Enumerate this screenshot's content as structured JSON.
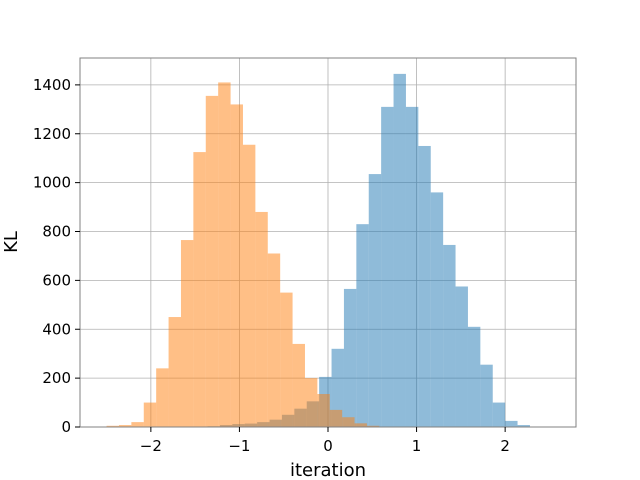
{
  "chart_data": {
    "type": "histogram",
    "xlabel": "iteration",
    "ylabel": "KL",
    "xlim": [
      -2.8,
      2.8
    ],
    "ylim": [
      0,
      1510
    ],
    "grid": true,
    "x_ticks": [
      {
        "value": -2,
        "label": "−2"
      },
      {
        "value": -1,
        "label": "−1"
      },
      {
        "value": 0,
        "label": "0"
      },
      {
        "value": 1,
        "label": "1"
      },
      {
        "value": 2,
        "label": "2"
      }
    ],
    "y_ticks": [
      0,
      200,
      400,
      600,
      800,
      1000,
      1200,
      1400
    ],
    "series": [
      {
        "color": "#1f77b4",
        "opacity": 0.5,
        "bin_start": -2.48,
        "bin_width": 0.14,
        "counts": [
          0,
          0,
          0,
          0,
          0,
          0,
          0,
          0,
          3,
          8,
          12,
          14,
          20,
          30,
          50,
          75,
          105,
          205,
          320,
          565,
          830,
          1035,
          1310,
          1445,
          1310,
          1150,
          960,
          745,
          575,
          410,
          255,
          100,
          25,
          8,
          0,
          0
        ]
      },
      {
        "color": "#ff7f0e",
        "opacity": 0.5,
        "bin_start": -2.5,
        "bin_width": 0.14,
        "counts": [
          5,
          8,
          20,
          100,
          240,
          450,
          765,
          1125,
          1355,
          1410,
          1320,
          1155,
          880,
          710,
          550,
          340,
          200,
          135,
          70,
          40,
          15,
          5,
          2,
          0,
          0,
          0,
          0,
          0,
          0,
          0,
          0,
          0,
          0,
          0,
          0,
          0
        ]
      }
    ]
  }
}
